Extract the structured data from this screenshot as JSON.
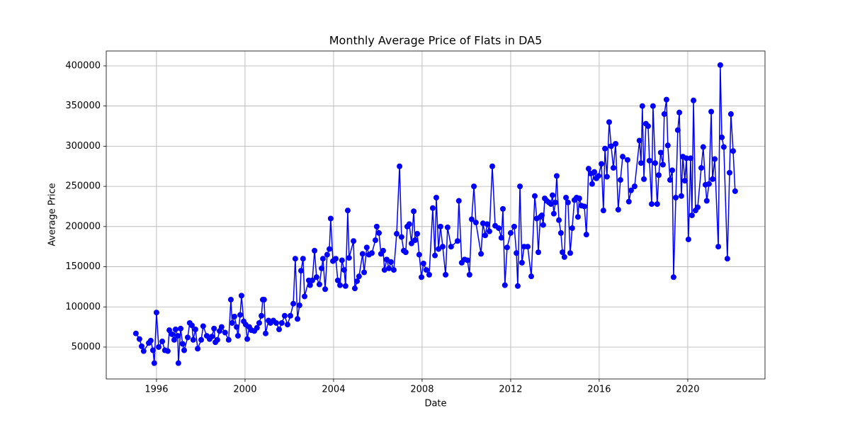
{
  "chart_data": {
    "type": "line",
    "title": "Monthly Average Price of Flats in DA5",
    "xlabel": "Date",
    "ylabel": "Average Price",
    "color": "#0000ff",
    "grid": true,
    "xlim": [
      1993.73,
      2023.49
    ],
    "xticks": [
      1996,
      2000,
      2004,
      2008,
      2012,
      2016,
      2020
    ],
    "ylim": [
      10300,
      418500
    ],
    "yticks": [
      50000,
      100000,
      150000,
      200000,
      250000,
      300000,
      350000,
      400000
    ],
    "x": [
      1995.07,
      1995.23,
      1995.33,
      1995.42,
      1995.65,
      1995.74,
      1995.84,
      1995.9,
      1996.0,
      1996.1,
      1996.26,
      1996.38,
      1996.51,
      1996.58,
      1996.7,
      1996.8,
      1996.86,
      1996.96,
      1996.99,
      1997.09,
      1997.18,
      1997.25,
      1997.41,
      1997.5,
      1997.6,
      1997.66,
      1997.76,
      1997.86,
      1998.02,
      1998.11,
      1998.27,
      1998.4,
      1998.5,
      1998.6,
      1998.66,
      1998.75,
      1998.85,
      1998.94,
      1999.1,
      1999.26,
      1999.36,
      1999.42,
      1999.52,
      1999.62,
      1999.68,
      1999.78,
      1999.84,
      1999.94,
      2000.03,
      2000.1,
      2000.19,
      2000.29,
      2000.42,
      2000.54,
      2000.64,
      2000.74,
      2000.8,
      2000.86,
      2000.93,
      2001.06,
      2001.15,
      2001.28,
      2001.41,
      2001.54,
      2001.66,
      2001.79,
      2001.92,
      2002.05,
      2002.18,
      2002.27,
      2002.37,
      2002.46,
      2002.53,
      2002.62,
      2002.69,
      2002.88,
      2002.94,
      2003.04,
      2003.14,
      2003.23,
      2003.36,
      2003.46,
      2003.52,
      2003.62,
      2003.71,
      2003.81,
      2003.87,
      2003.97,
      2004.1,
      2004.19,
      2004.29,
      2004.38,
      2004.48,
      2004.54,
      2004.64,
      2004.7,
      2004.9,
      2004.96,
      2005.06,
      2005.15,
      2005.31,
      2005.38,
      2005.5,
      2005.6,
      2005.73,
      2005.89,
      2005.95,
      2006.05,
      2006.14,
      2006.24,
      2006.3,
      2006.4,
      2006.5,
      2006.59,
      2006.72,
      2006.85,
      2006.98,
      2007.07,
      2007.17,
      2007.26,
      2007.33,
      2007.42,
      2007.52,
      2007.62,
      2007.68,
      2007.78,
      2007.87,
      2007.97,
      2008.06,
      2008.19,
      2008.32,
      2008.48,
      2008.58,
      2008.64,
      2008.74,
      2008.83,
      2008.93,
      2009.06,
      2009.15,
      2009.31,
      2009.6,
      2009.66,
      2009.79,
      2009.92,
      2010.05,
      2010.14,
      2010.24,
      2010.34,
      2010.43,
      2010.66,
      2010.75,
      2010.85,
      2010.94,
      2011.04,
      2011.17,
      2011.3,
      2011.46,
      2011.58,
      2011.65,
      2011.74,
      2011.84,
      2012.0,
      2012.16,
      2012.26,
      2012.32,
      2012.42,
      2012.51,
      2012.61,
      2012.77,
      2012.93,
      2013.09,
      2013.18,
      2013.25,
      2013.34,
      2013.41,
      2013.47,
      2013.54,
      2013.63,
      2013.73,
      2013.82,
      2013.89,
      2013.95,
      2014.02,
      2014.08,
      2014.18,
      2014.27,
      2014.34,
      2014.43,
      2014.5,
      2014.59,
      2014.69,
      2014.78,
      2014.88,
      2014.98,
      2015.04,
      2015.1,
      2015.2,
      2015.33,
      2015.42,
      2015.52,
      2015.62,
      2015.68,
      2015.78,
      2015.87,
      2015.97,
      2016.1,
      2016.19,
      2016.26,
      2016.35,
      2016.45,
      2016.54,
      2016.64,
      2016.74,
      2016.86,
      2016.96,
      2017.06,
      2017.28,
      2017.34,
      2017.44,
      2017.6,
      2017.82,
      2017.89,
      2017.95,
      2018.02,
      2018.11,
      2018.21,
      2018.27,
      2018.37,
      2018.43,
      2018.53,
      2018.62,
      2018.69,
      2018.78,
      2018.88,
      2018.94,
      2019.04,
      2019.1,
      2019.2,
      2019.3,
      2019.36,
      2019.46,
      2019.55,
      2019.62,
      2019.71,
      2019.78,
      2019.87,
      2019.94,
      2020.03,
      2020.13,
      2020.19,
      2020.26,
      2020.35,
      2020.45,
      2020.61,
      2020.7,
      2020.8,
      2020.86,
      2020.96,
      2021.06,
      2021.12,
      2021.22,
      2021.38,
      2021.47,
      2021.54,
      2021.63,
      2021.79,
      2021.89,
      2021.95,
      2022.05,
      2022.14
    ],
    "values": [
      67000,
      60000,
      51000,
      45000,
      55000,
      58000,
      46000,
      30000,
      93000,
      50000,
      57000,
      46000,
      45000,
      71000,
      66000,
      59000,
      72000,
      64000,
      30000,
      73000,
      54000,
      46000,
      62000,
      80000,
      77000,
      59000,
      72000,
      48000,
      59000,
      76000,
      64000,
      60000,
      63000,
      73000,
      56000,
      59000,
      70000,
      75000,
      68000,
      59000,
      109000,
      80000,
      88000,
      75000,
      64000,
      90000,
      114000,
      82000,
      78000,
      60000,
      75000,
      71000,
      70000,
      74000,
      80000,
      89000,
      109000,
      109000,
      67000,
      83000,
      80000,
      83000,
      80000,
      72000,
      80000,
      89000,
      78000,
      89000,
      104000,
      160000,
      85000,
      102000,
      145000,
      160000,
      113000,
      133000,
      127000,
      133000,
      170000,
      137000,
      128000,
      148000,
      160000,
      122000,
      165000,
      172000,
      210000,
      157000,
      160000,
      133000,
      127000,
      158000,
      146000,
      126000,
      220000,
      161000,
      182000,
      123000,
      132000,
      138000,
      166000,
      143000,
      174000,
      165000,
      167000,
      183000,
      200000,
      192000,
      166000,
      170000,
      146000,
      159000,
      148000,
      156000,
      146000,
      191000,
      275000,
      187000,
      170000,
      168000,
      200000,
      203000,
      179000,
      219000,
      183000,
      191000,
      165000,
      137000,
      154000,
      146000,
      140000,
      223000,
      164000,
      236000,
      172000,
      200000,
      175000,
      140000,
      199000,
      175000,
      182000,
      232000,
      155000,
      159000,
      158000,
      140000,
      209000,
      250000,
      205000,
      166000,
      204000,
      189000,
      203000,
      194000,
      275000,
      201000,
      198000,
      186000,
      222000,
      127000,
      174000,
      192000,
      200000,
      167000,
      126000,
      250000,
      155000,
      175000,
      175000,
      138000,
      238000,
      210000,
      168000,
      212000,
      214000,
      202000,
      235000,
      232000,
      230000,
      228000,
      239000,
      216000,
      230000,
      263000,
      208000,
      192000,
      168000,
      162000,
      236000,
      230000,
      167000,
      198000,
      233000,
      236000,
      212000,
      235000,
      226000,
      225000,
      190000,
      272000,
      266000,
      253000,
      268000,
      260000,
      263000,
      278000,
      220000,
      297000,
      262000,
      330000,
      300000,
      273000,
      303000,
      221000,
      258000,
      287000,
      283000,
      231000,
      245000,
      250000,
      307000,
      279000,
      350000,
      259000,
      328000,
      325000,
      282000,
      228000,
      350000,
      279000,
      228000,
      264000,
      292000,
      277000,
      340000,
      358000,
      301000,
      258000,
      270000,
      137000,
      236000,
      320000,
      342000,
      238000,
      287000,
      257000,
      285000,
      184000,
      285000,
      214000,
      357000,
      220000,
      224000,
      273000,
      299000,
      252000,
      232000,
      253000,
      343000,
      259000,
      284000,
      175000,
      401000,
      311000,
      299000,
      160000,
      267000,
      340000,
      294000,
      244000
    ]
  }
}
